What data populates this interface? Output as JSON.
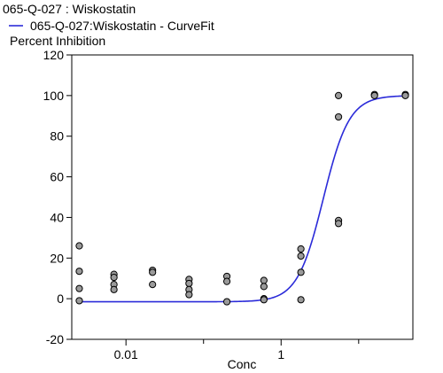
{
  "chart_data": {
    "type": "scatter",
    "title": "065-Q-027  : Wiskostatin",
    "legend": [
      {
        "label": "065-Q-027:Wiskostatin - CurveFit",
        "color": "#2b2bd9",
        "kind": "line"
      }
    ],
    "ylabel": "Percent Inhibition",
    "xlabel": "Conc",
    "xscale": "log",
    "xlim": [
      0.002,
      50
    ],
    "ylim": [
      -20,
      120
    ],
    "y_ticks": [
      -20,
      0,
      20,
      40,
      60,
      80,
      100,
      120
    ],
    "x_ticks": [
      {
        "value": 0.01,
        "label": "0.01"
      },
      {
        "value": 1,
        "label": "1"
      }
    ],
    "x_minor_ticks": [
      0.1,
      10
    ],
    "legend_placement": "top-left",
    "grid": false,
    "series": [
      {
        "kind": "points",
        "marker_color": "#9a9a9a",
        "marker_edge": "#000000",
        "points": [
          {
            "x": 0.0025,
            "y": 26
          },
          {
            "x": 0.0025,
            "y": 13.5
          },
          {
            "x": 0.0025,
            "y": 5
          },
          {
            "x": 0.0025,
            "y": -1
          },
          {
            "x": 0.007,
            "y": 12
          },
          {
            "x": 0.007,
            "y": 10.5
          },
          {
            "x": 0.007,
            "y": 7
          },
          {
            "x": 0.007,
            "y": 4.5
          },
          {
            "x": 0.022,
            "y": 14
          },
          {
            "x": 0.022,
            "y": 13
          },
          {
            "x": 0.022,
            "y": 7
          },
          {
            "x": 0.065,
            "y": 9.5
          },
          {
            "x": 0.065,
            "y": 7.5
          },
          {
            "x": 0.065,
            "y": 4.5
          },
          {
            "x": 0.065,
            "y": 2
          },
          {
            "x": 0.2,
            "y": 11
          },
          {
            "x": 0.2,
            "y": 8.5
          },
          {
            "x": 0.2,
            "y": -1.5
          },
          {
            "x": 0.6,
            "y": 9
          },
          {
            "x": 0.6,
            "y": 6
          },
          {
            "x": 0.6,
            "y": 0
          },
          {
            "x": 0.6,
            "y": -0.5
          },
          {
            "x": 1.8,
            "y": 24.5
          },
          {
            "x": 1.8,
            "y": 21
          },
          {
            "x": 1.8,
            "y": 13
          },
          {
            "x": 1.8,
            "y": -0.5
          },
          {
            "x": 5.5,
            "y": 100
          },
          {
            "x": 5.5,
            "y": 89.5
          },
          {
            "x": 5.5,
            "y": 38.5
          },
          {
            "x": 5.5,
            "y": 37
          },
          {
            "x": 16,
            "y": 100.5
          },
          {
            "x": 16,
            "y": 100
          },
          {
            "x": 40,
            "y": 100.5
          },
          {
            "x": 40,
            "y": 100
          }
        ]
      },
      {
        "kind": "curve",
        "name": "065-Q-027:Wiskostatin - CurveFit",
        "color": "#2b2bd9",
        "bottom": -1.5,
        "top": 100,
        "ec50": 3.5,
        "hill": 2.6,
        "x_range": [
          0.0025,
          40
        ]
      }
    ]
  }
}
